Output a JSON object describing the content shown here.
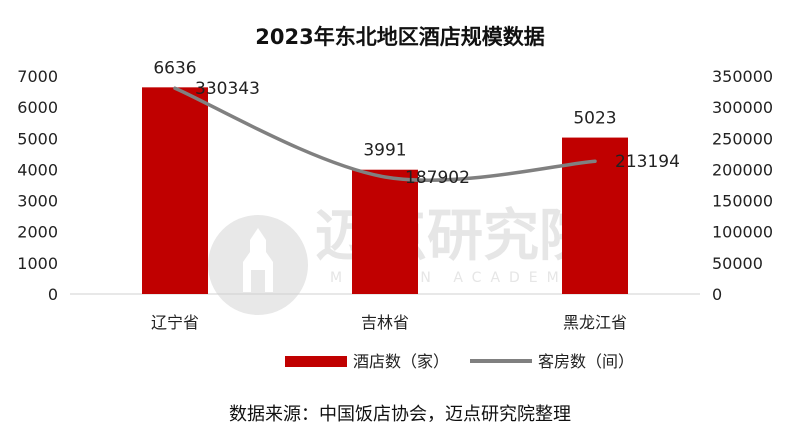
{
  "chart_data": {
    "type": "bar",
    "title": "2023年东北地区酒店规模数据",
    "categories": [
      "辽宁省",
      "吉林省",
      "黑龙江省"
    ],
    "series": [
      {
        "name": "酒店数（家）",
        "type": "bar",
        "axis": "left",
        "values": [
          6636,
          3991,
          5023
        ],
        "color": "#c00000"
      },
      {
        "name": "客房数（间）",
        "type": "line",
        "axis": "right",
        "values": [
          330343,
          187902,
          213194
        ],
        "color": "#808080"
      }
    ],
    "ylim_left": [
      0,
      7000
    ],
    "yticks_left": [
      0,
      1000,
      2000,
      3000,
      4000,
      5000,
      6000,
      7000
    ],
    "ylim_right": [
      0,
      350000
    ],
    "yticks_right": [
      0,
      50000,
      100000,
      150000,
      200000,
      250000,
      300000,
      350000
    ],
    "grid": false,
    "legend_position": "bottom"
  },
  "source_note": "数据来源：中国饭店协会，迈点研究院整理",
  "watermark": {
    "text": "迈点研究院",
    "sub": "MEADIN ACADEMY"
  }
}
